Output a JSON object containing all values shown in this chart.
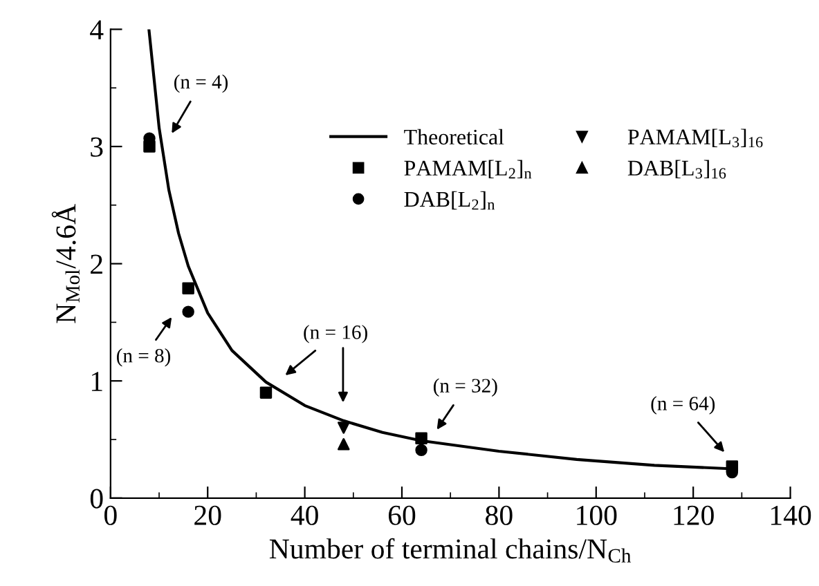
{
  "chart_data": {
    "type": "scatter",
    "xlabel": "Number of terminal chains/N$_{Ch}$",
    "ylabel": "N$_{Mol}$/4.6Å",
    "xlim": [
      0,
      140
    ],
    "xticks": [
      0,
      20,
      40,
      60,
      80,
      100,
      120,
      140
    ],
    "ylim": [
      0,
      4
    ],
    "yticks": [
      0,
      1,
      2,
      3,
      4
    ],
    "grid": false,
    "legend": "top right",
    "series": [
      {
        "name": "Theoretical",
        "type": "line",
        "marker": "none",
        "color": "#000000",
        "x": [
          7.9,
          10,
          12,
          14,
          16,
          20,
          25,
          32,
          40,
          48,
          56,
          64,
          80,
          96,
          112,
          128
        ],
        "values": [
          4.0,
          3.16,
          2.63,
          2.26,
          1.98,
          1.58,
          1.26,
          0.99,
          0.79,
          0.66,
          0.56,
          0.49,
          0.4,
          0.33,
          0.28,
          0.25
        ]
      },
      {
        "name": "PAMAM[L$_{2}$]$_{n}$",
        "marker": "square",
        "color": "#000000",
        "x": [
          8,
          16,
          32,
          64,
          128
        ],
        "values": [
          3.0,
          1.79,
          0.9,
          0.51,
          0.27
        ]
      },
      {
        "name": "DAB[L$_{2}$]$_{n}$",
        "marker": "circle",
        "color": "#000000",
        "x": [
          8,
          16,
          64,
          128
        ],
        "values": [
          3.07,
          1.59,
          0.41,
          0.22
        ]
      },
      {
        "name": "PAMAM[L$_{3}$]$_{16}$",
        "marker": "triangle_down",
        "color": "#000000",
        "x": [
          48
        ],
        "values": [
          0.6
        ]
      },
      {
        "name": "DAB[L$_{3}$]$_{16}$",
        "marker": "triangle",
        "color": "#000000",
        "x": [
          48
        ],
        "values": [
          0.46
        ]
      }
    ],
    "annotations": [
      "(n = 4)",
      "(n = 8)",
      "(n = 16)",
      "(n = 32)",
      "(n = 64)"
    ]
  }
}
